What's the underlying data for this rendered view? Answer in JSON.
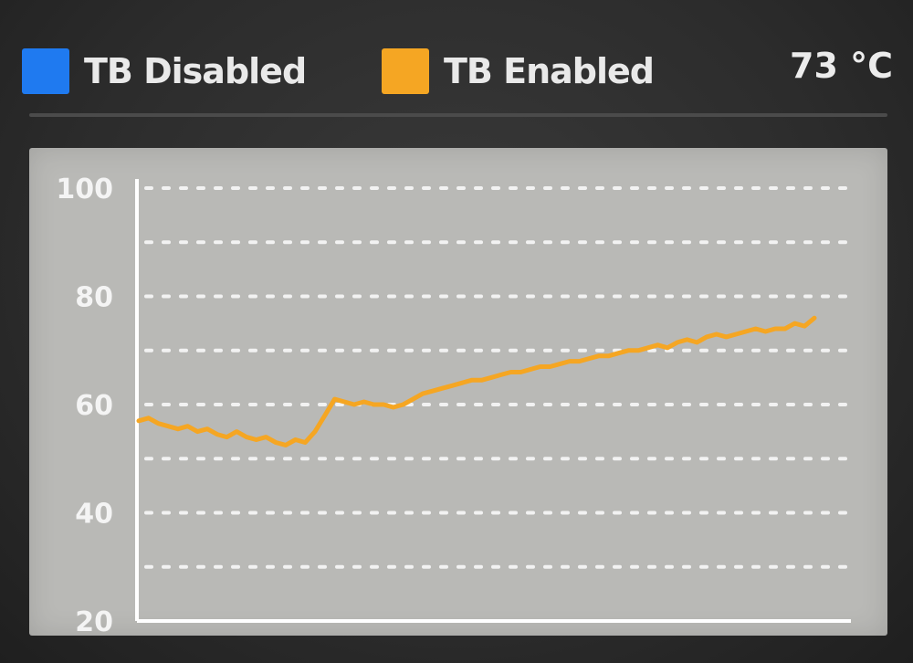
{
  "legend": {
    "items": [
      {
        "label": "TB Disabled",
        "color": "#1f7af0"
      },
      {
        "label": "TB Enabled",
        "color": "#f5a623"
      }
    ]
  },
  "readout": "73 °C",
  "chart_data": {
    "type": "line",
    "ylim": [
      20,
      100
    ],
    "y_ticks": [
      20,
      40,
      60,
      80,
      100
    ],
    "gridlines": "dotted",
    "grid_step": 10,
    "series": [
      {
        "name": "TB Disabled",
        "color": "#1f7af0",
        "values": []
      },
      {
        "name": "TB Enabled",
        "color": "#f5a623",
        "values": [
          57,
          57.5,
          56.5,
          56,
          55.5,
          56,
          55,
          55.5,
          54.5,
          54,
          55,
          54,
          53.5,
          54,
          53,
          52.5,
          53.5,
          53,
          55,
          58,
          61,
          60.5,
          60,
          60.5,
          60,
          60,
          59.5,
          60,
          61,
          62,
          62.5,
          63,
          63.5,
          64,
          64.5,
          64.5,
          65,
          65.5,
          66,
          66,
          66.5,
          67,
          67,
          67.5,
          68,
          68,
          68.5,
          69,
          69,
          69.5,
          70,
          70,
          70.5,
          71,
          70.5,
          71.5,
          72,
          71.5,
          72.5,
          73,
          72.5,
          73,
          73.5,
          74,
          73.5,
          74,
          74,
          75,
          74.5,
          76
        ]
      }
    ]
  }
}
